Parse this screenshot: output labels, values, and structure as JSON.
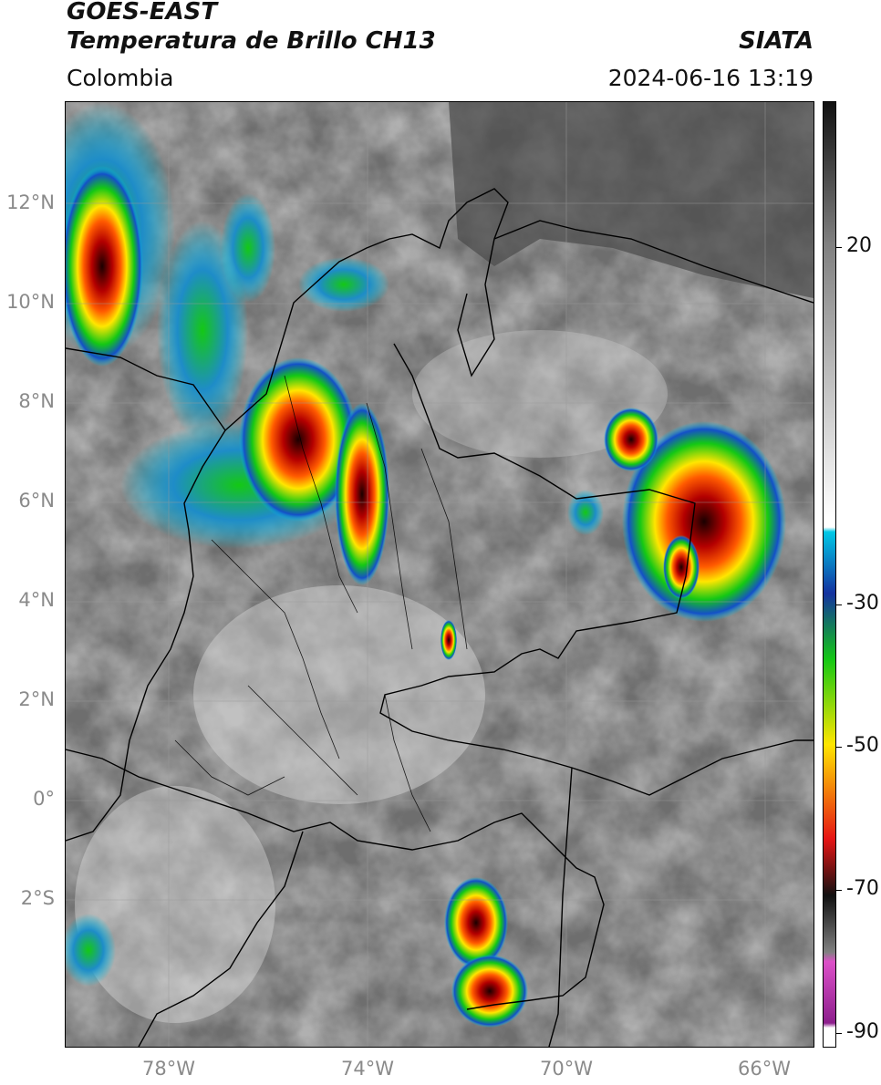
{
  "header": {
    "title_line1": "GOES-EAST",
    "title_line2": "Temperatura de Brillo CH13",
    "organization": "SIATA",
    "region": "Colombia",
    "datetime": "2024-06-16 13:19"
  },
  "map": {
    "lat_labels": [
      "12°N",
      "10°N",
      "8°N",
      "6°N",
      "4°N",
      "2°N",
      "0°",
      "2°S"
    ],
    "lon_labels": [
      "78°W",
      "74°W",
      "70°W",
      "66°W"
    ]
  },
  "colorbar": {
    "labels": [
      "20",
      "-30",
      "-50",
      "-70",
      "-90"
    ],
    "colors": {
      "black": "#111111",
      "gray": "#808080",
      "white": "#ffffff",
      "cyan": "#00c8e6",
      "blue": "#1432a0",
      "green": "#14c814",
      "yellow": "#ffe600",
      "red": "#e61414",
      "pink": "#dc50c8",
      "purple": "#8c1e8c"
    }
  }
}
